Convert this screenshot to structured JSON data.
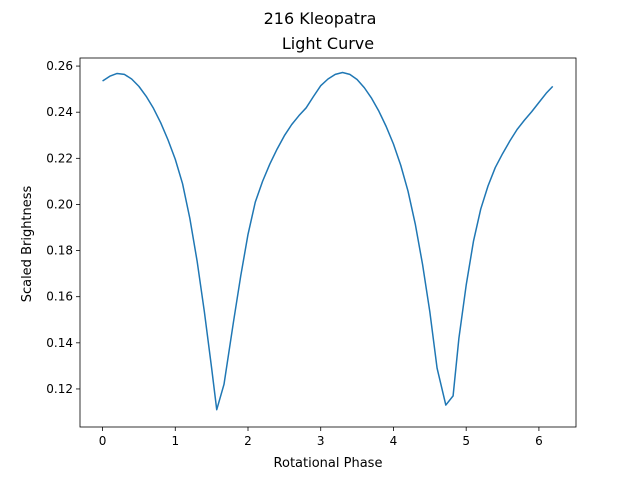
{
  "chart_data": {
    "type": "line",
    "suptitle": "216 Kleopatra",
    "title": "Light Curve",
    "xlabel": "Rotational Phase",
    "ylabel": "Scaled Brightness",
    "xlim": [
      -0.31,
      6.51
    ],
    "ylim": [
      0.1035,
      0.2635
    ],
    "xticks": [
      0,
      1,
      2,
      3,
      4,
      5,
      6
    ],
    "yticks": [
      0.12,
      0.14,
      0.16,
      0.18,
      0.2,
      0.22,
      0.24,
      0.26
    ],
    "xtick_labels": [
      "0",
      "1",
      "2",
      "3",
      "4",
      "5",
      "6"
    ],
    "ytick_labels": [
      "0.12",
      "0.14",
      "0.16",
      "0.18",
      "0.20",
      "0.22",
      "0.24",
      "0.26"
    ],
    "grid": false,
    "legend": "none",
    "series": [
      {
        "color": "#1f77b4",
        "x": [
          0.0,
          0.1,
          0.2,
          0.3,
          0.4,
          0.5,
          0.6,
          0.7,
          0.8,
          0.9,
          1.0,
          1.1,
          1.2,
          1.3,
          1.4,
          1.5,
          1.57,
          1.67,
          1.8,
          1.9,
          2.0,
          2.1,
          2.2,
          2.3,
          2.4,
          2.5,
          2.6,
          2.7,
          2.8,
          2.9,
          3.0,
          3.1,
          3.2,
          3.3,
          3.4,
          3.5,
          3.6,
          3.7,
          3.8,
          3.9,
          4.0,
          4.1,
          4.2,
          4.3,
          4.4,
          4.5,
          4.6,
          4.72,
          4.82,
          4.9,
          5.0,
          5.1,
          5.2,
          5.3,
          5.4,
          5.5,
          5.6,
          5.7,
          5.8,
          5.9,
          6.0,
          6.1,
          6.19
        ],
        "values": [
          0.2535,
          0.2556,
          0.2568,
          0.2564,
          0.2544,
          0.2512,
          0.2469,
          0.2417,
          0.2354,
          0.228,
          0.2196,
          0.209,
          0.194,
          0.1755,
          0.1535,
          0.129,
          0.111,
          0.122,
          0.149,
          0.169,
          0.187,
          0.201,
          0.21,
          0.2175,
          0.224,
          0.2298,
          0.2346,
          0.2385,
          0.2419,
          0.2468,
          0.2515,
          0.2544,
          0.2564,
          0.2572,
          0.2564,
          0.2542,
          0.2506,
          0.246,
          0.2404,
          0.2338,
          0.2262,
          0.217,
          0.2058,
          0.1915,
          0.174,
          0.1535,
          0.129,
          0.113,
          0.117,
          0.142,
          0.165,
          0.184,
          0.198,
          0.208,
          0.216,
          0.222,
          0.2275,
          0.2325,
          0.2365,
          0.2402,
          0.2442,
          0.2482,
          0.2512
        ]
      }
    ]
  }
}
